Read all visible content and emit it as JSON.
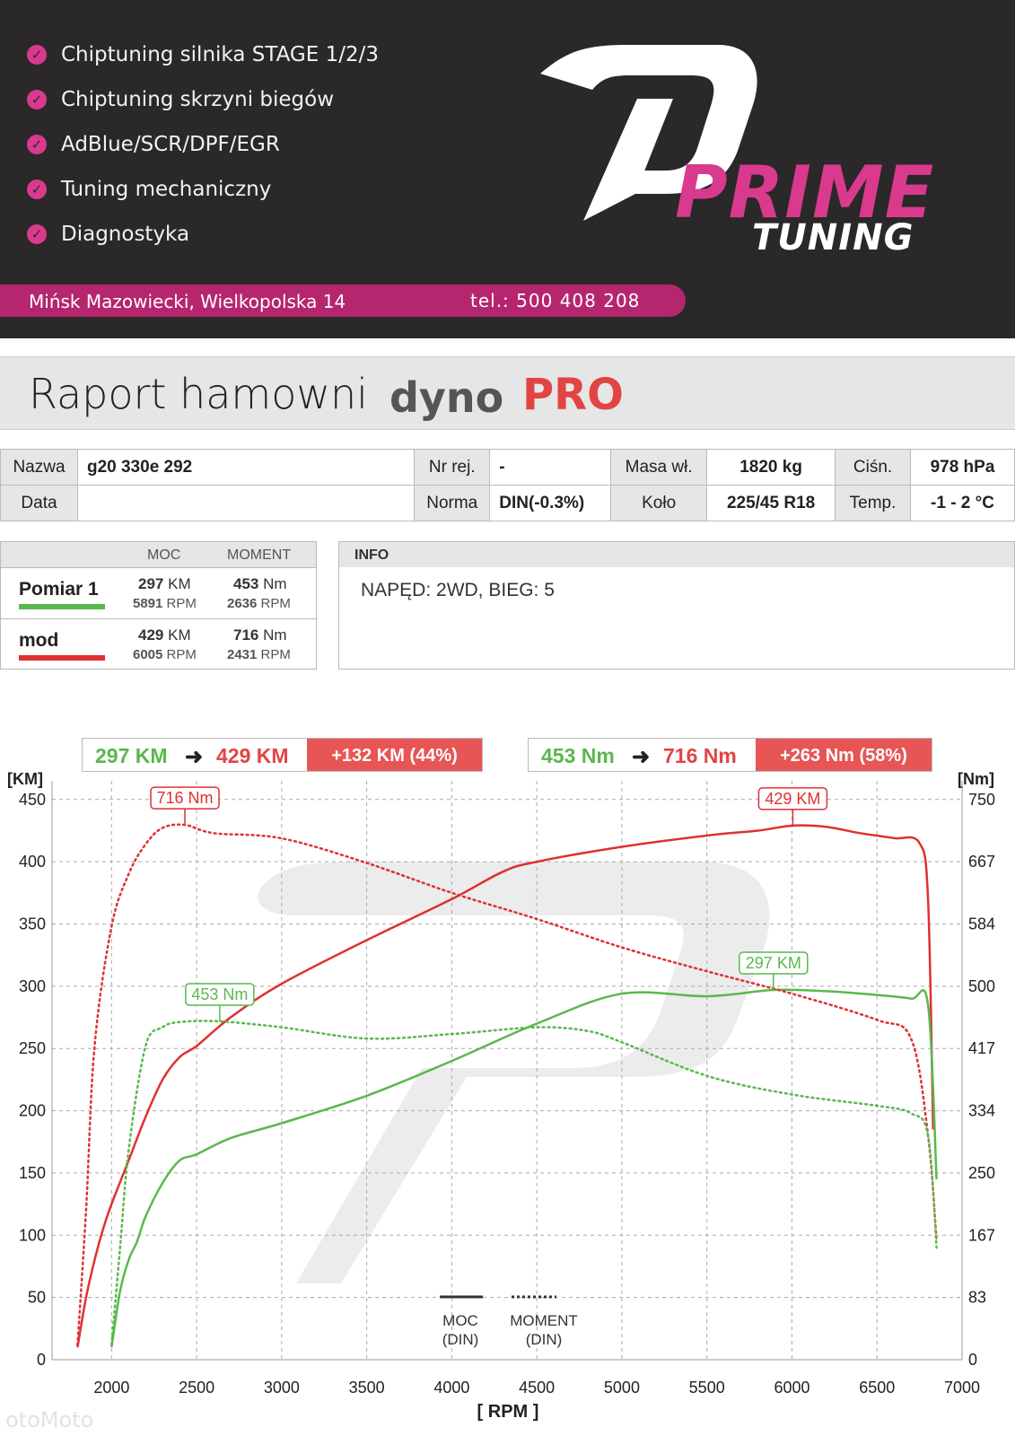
{
  "banner": {
    "services": [
      "Chiptuning silnika STAGE 1/2/3",
      "Chiptuning skrzyni biegów",
      "AdBlue/SCR/DPF/EGR",
      "Tuning mechaniczny",
      "Diagnostyka"
    ],
    "brand_line1": "PRIME",
    "brand_line2": "TUNING",
    "address": "Mińsk Mazowiecki, Wielkopolska 14",
    "phone": "tel.:  500 408 208",
    "colors": {
      "background": "#2a2829",
      "accent": "#d93a8e",
      "bar": "#b5266f"
    }
  },
  "report": {
    "title": "Raport hamowni",
    "brand_a": "dyno",
    "brand_b": "PRO"
  },
  "details": {
    "row1": [
      {
        "label": "Nazwa",
        "value": "g20 330e 292"
      },
      {
        "label": "Nr rej.",
        "value": "-"
      },
      {
        "label": "Masa wł.",
        "value": "1820 kg"
      },
      {
        "label": "Ciśn.",
        "value": "978 hPa"
      }
    ],
    "row2": [
      {
        "label": "Data",
        "value": ""
      },
      {
        "label": "Norma",
        "value": "DIN(-0.3%)"
      },
      {
        "label": "Koło",
        "value": "225/45 R18"
      },
      {
        "label": "Temp.",
        "value": "-1 - 2 °C"
      }
    ]
  },
  "measurements": {
    "col_power": "MOC",
    "col_torque": "MOMENT",
    "rows": [
      {
        "name": "Pomiar 1",
        "color": "#5ab84e",
        "power": "297",
        "power_unit": "KM",
        "power_rpm": "5891",
        "torque": "453",
        "torque_unit": "Nm",
        "torque_rpm": "2636",
        "rpm_unit": "RPM"
      },
      {
        "name": "mod",
        "color": "#e03030",
        "power": "429",
        "power_unit": "KM",
        "power_rpm": "6005",
        "torque": "716",
        "torque_unit": "Nm",
        "torque_rpm": "2431",
        "rpm_unit": "RPM"
      }
    ]
  },
  "info": {
    "header": "INFO",
    "text": "NAPĘD: 2WD,  BIEG: 5"
  },
  "summary": {
    "power_from": "297 KM",
    "power_to": "429 KM",
    "power_delta": "+132 KM  (44%)",
    "torque_from": "453 Nm",
    "torque_to": "716 Nm",
    "torque_delta": "+263 Nm  (58%)",
    "arrow": "➜"
  },
  "chart_data": {
    "type": "line",
    "xlabel": "[ RPM ]",
    "ylabel_left": "[KM]",
    "ylabel_right": "[Nm]",
    "xlim": [
      1650,
      7000
    ],
    "ylim_left": [
      0,
      465
    ],
    "ylim_right": [
      0,
      775
    ],
    "x_ticks": [
      2000,
      2500,
      3000,
      3500,
      4000,
      4500,
      5000,
      5500,
      6000,
      6500,
      7000
    ],
    "y_ticks_left": [
      0,
      50,
      100,
      150,
      200,
      250,
      300,
      350,
      400,
      450
    ],
    "y_ticks_right": [
      "0",
      "83",
      "167",
      "250",
      "334",
      "417",
      "500",
      "584",
      "667",
      "750"
    ],
    "grid": true,
    "legend": {
      "power": "MOC\n(DIN)",
      "torque": "MOMENT\n(DIN)",
      "power_line1": "MOC",
      "power_line2": "(DIN)",
      "torque_line1": "MOMENT",
      "torque_line2": "(DIN)"
    },
    "series": [
      {
        "name": "mod",
        "measure": "power",
        "axis": "left",
        "color": "#e03030",
        "style": "solid",
        "x": [
          1800,
          1850,
          1900,
          1950,
          2000,
          2100,
          2200,
          2300,
          2400,
          2500,
          2700,
          3000,
          3500,
          4000,
          4300,
          4500,
          5000,
          5500,
          5800,
          6005,
          6200,
          6400,
          6600,
          6750,
          6800,
          6830
        ],
        "y": [
          10,
          50,
          80,
          105,
          125,
          160,
          195,
          225,
          243,
          252,
          275,
          302,
          337,
          370,
          392,
          400,
          412,
          421,
          425,
          429,
          428,
          423,
          419,
          415,
          370,
          185
        ]
      },
      {
        "name": "Pomiar 1",
        "measure": "power",
        "axis": "left",
        "color": "#5ab84e",
        "style": "solid",
        "x": [
          2000,
          2050,
          2100,
          2150,
          2200,
          2300,
          2400,
          2500,
          2700,
          3000,
          3500,
          4000,
          4500,
          5000,
          5500,
          5891,
          6200,
          6500,
          6700,
          6800,
          6850
        ],
        "y": [
          10,
          55,
          80,
          95,
          115,
          142,
          160,
          165,
          178,
          190,
          212,
          240,
          270,
          294,
          292,
          297,
          296,
          293,
          290,
          285,
          145
        ]
      },
      {
        "name": "mod",
        "measure": "torque",
        "axis": "right",
        "color": "#e03030",
        "style": "dotted",
        "x": [
          1800,
          1850,
          1900,
          2000,
          2100,
          2200,
          2300,
          2431,
          2600,
          3000,
          3500,
          4000,
          4500,
          5000,
          5500,
          6000,
          6500,
          6700,
          6800,
          6850
        ],
        "y": [
          20,
          200,
          420,
          580,
          650,
          690,
          712,
          716,
          705,
          698,
          665,
          625,
          590,
          552,
          520,
          490,
          455,
          430,
          300,
          160
        ]
      },
      {
        "name": "Pomiar 1",
        "measure": "torque",
        "axis": "right",
        "color": "#5ab84e",
        "style": "dotted",
        "x": [
          2000,
          2050,
          2100,
          2200,
          2300,
          2400,
          2636,
          3000,
          3500,
          4000,
          4500,
          4800,
          5000,
          5500,
          6000,
          6500,
          6700,
          6800,
          6850
        ],
        "y": [
          20,
          150,
          280,
          420,
          445,
          452,
          453,
          445,
          430,
          436,
          445,
          440,
          425,
          380,
          355,
          340,
          330,
          300,
          150
        ]
      }
    ],
    "labels": [
      {
        "text": "716 Nm",
        "series": "mod-torque",
        "x": 2431,
        "y_right": 716
      },
      {
        "text": "429 KM",
        "series": "mod-power",
        "x": 6005,
        "y_left": 429
      },
      {
        "text": "297 KM",
        "series": "p1-power",
        "x": 5891,
        "y_left": 297
      },
      {
        "text": "453 Nm",
        "series": "p1-torque",
        "x": 2636,
        "y_right": 453
      }
    ]
  },
  "watermark": "otoMoto"
}
